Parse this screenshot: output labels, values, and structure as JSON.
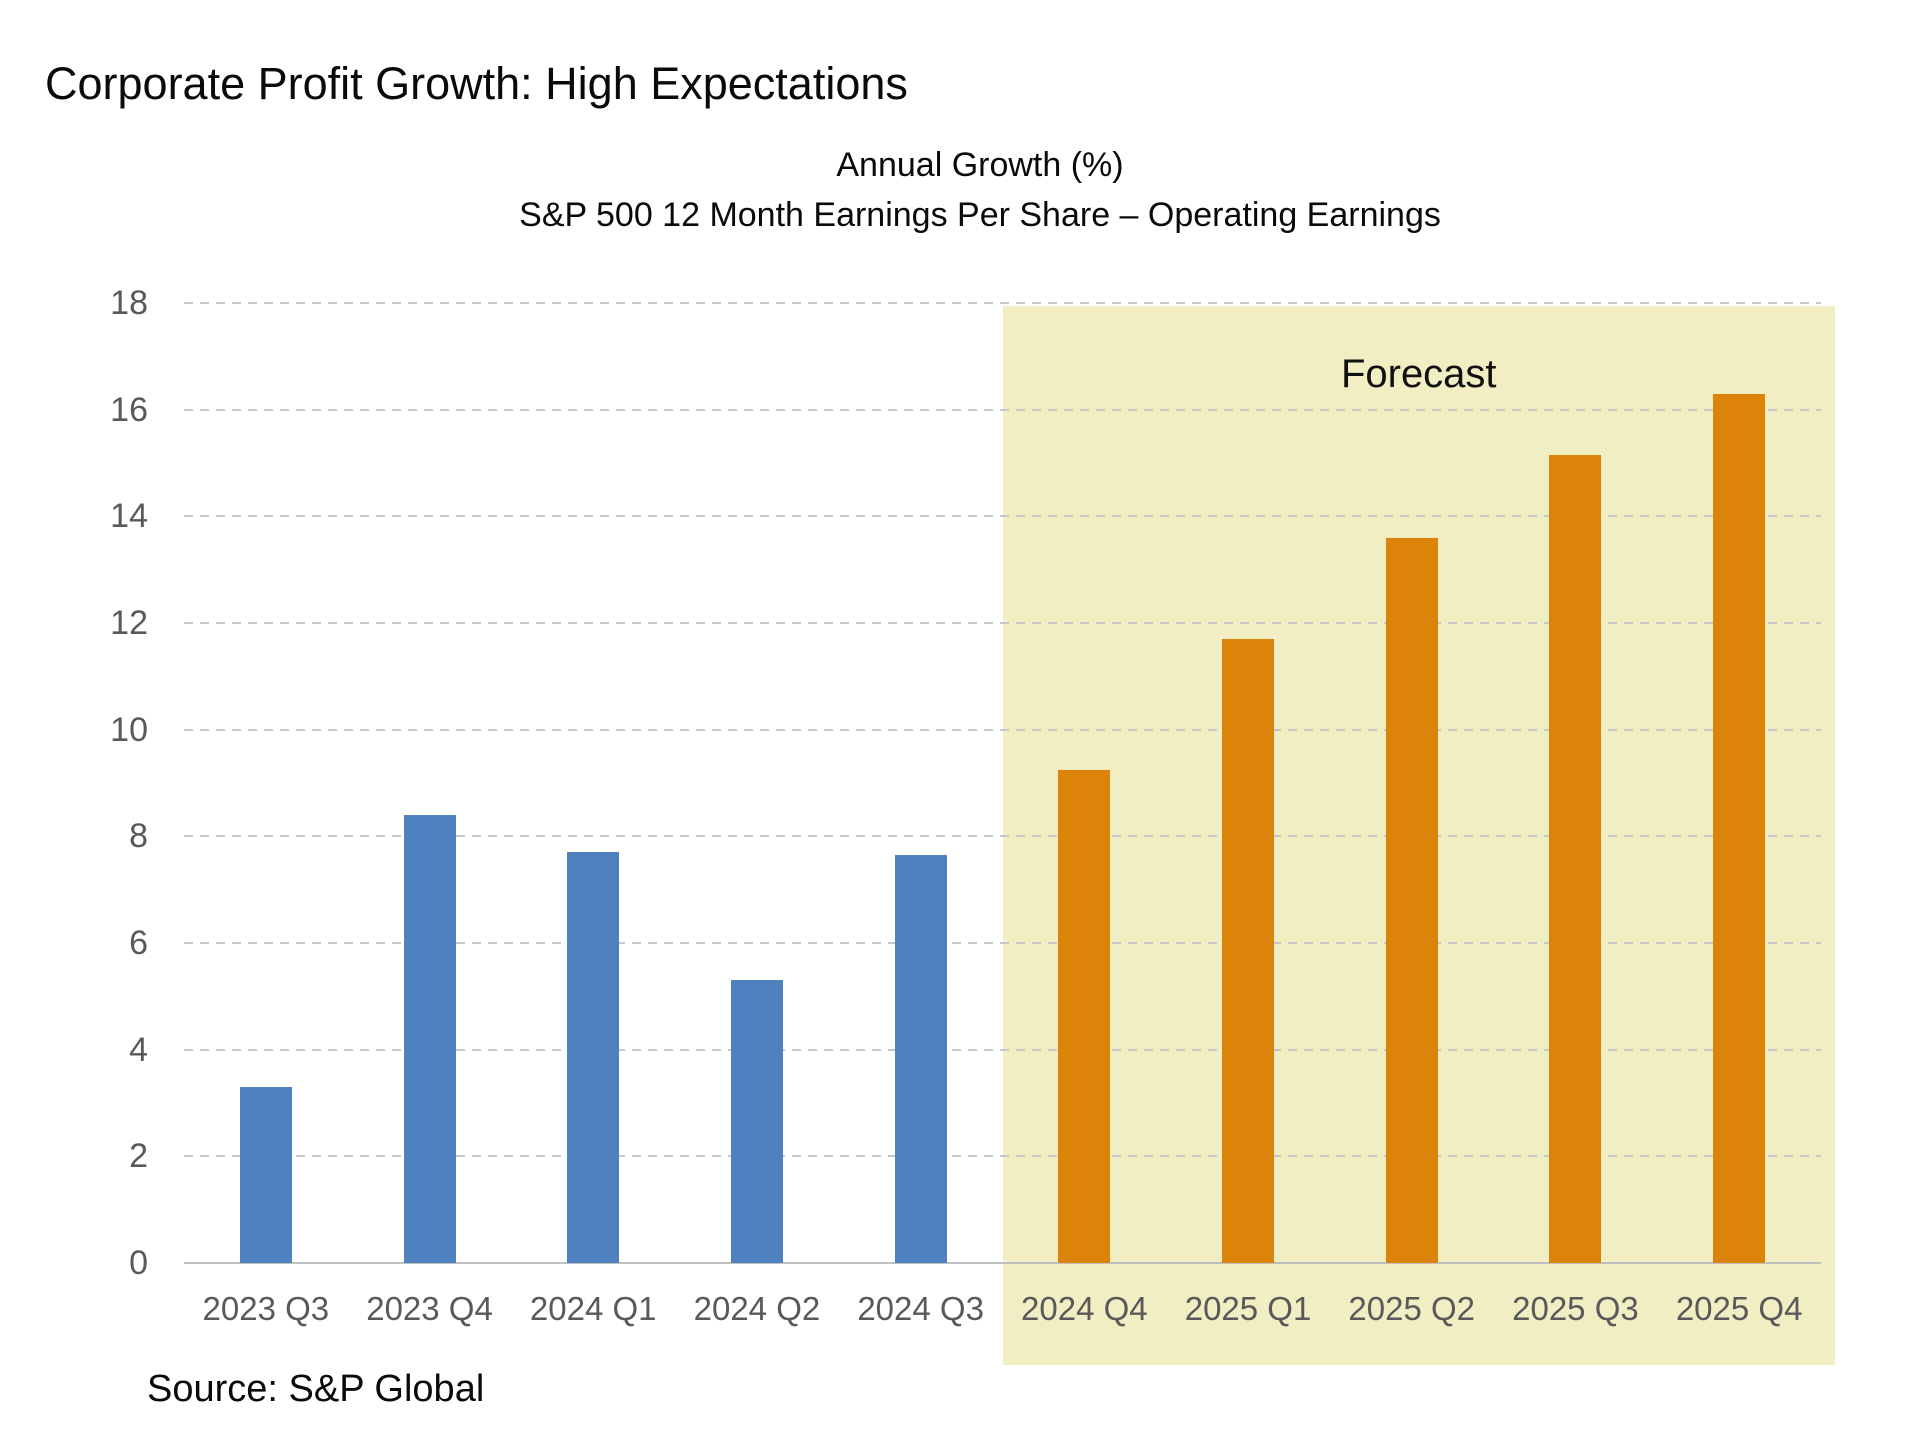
{
  "header": {
    "title": "Corporate Profit Growth: High Expectations"
  },
  "chart_data": {
    "type": "bar",
    "title": "Annual Growth (%)",
    "subtitle": "S&P 500 12 Month Earnings Per Share – Operating Earnings",
    "categories": [
      "2023 Q3",
      "2023 Q4",
      "2024 Q1",
      "2024 Q2",
      "2024 Q3",
      "2024 Q4",
      "2025 Q1",
      "2025 Q2",
      "2025 Q3",
      "2025 Q4"
    ],
    "values": [
      3.3,
      8.4,
      7.7,
      5.3,
      7.65,
      9.25,
      11.7,
      13.6,
      15.15,
      16.3
    ],
    "value_types": [
      "actual",
      "actual",
      "actual",
      "actual",
      "actual",
      "forecast",
      "forecast",
      "forecast",
      "forecast",
      "forecast"
    ],
    "forecast_start_index": 5,
    "forecast_label": "Forecast",
    "ylim": [
      0,
      18
    ],
    "ytick_step": 2,
    "grid": "dashed-horizontal",
    "legend": "none",
    "colors": {
      "actual_bar": "#4E81BD",
      "forecast_bar": "#DC830A",
      "forecast_band": "#F0EEC2",
      "axis_text": "#595959",
      "gridline": "#C7C7C7",
      "baseline": "#BFBFBF"
    },
    "source": "Source: S&P Global"
  }
}
